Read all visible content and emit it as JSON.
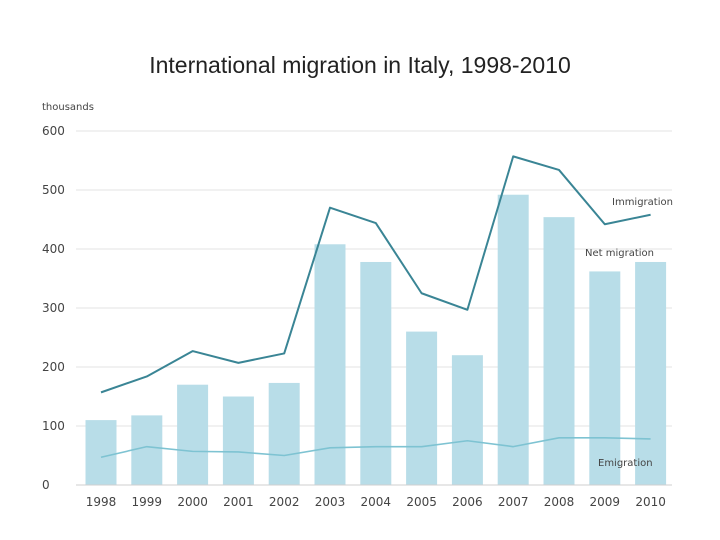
{
  "chart_data": {
    "type": "bar",
    "title": "International migration in Italy, 1998-2010",
    "ylabel": "thousands",
    "xlabel": "",
    "ylim": [
      0,
      600
    ],
    "yticks": [
      0,
      100,
      200,
      300,
      400,
      500,
      600
    ],
    "grid": true,
    "categories": [
      "1998",
      "1999",
      "2000",
      "2001",
      "2002",
      "2003",
      "2004",
      "2005",
      "2006",
      "2007",
      "2008",
      "2009",
      "2010"
    ],
    "series": [
      {
        "name": "Net migration",
        "type": "bar",
        "color": "#b8dde8",
        "values": [
          110,
          118,
          170,
          150,
          173,
          408,
          378,
          260,
          220,
          492,
          454,
          362,
          378
        ]
      },
      {
        "name": "Immigration",
        "type": "line",
        "color": "#3a8595",
        "values": [
          157,
          184,
          227,
          207,
          223,
          470,
          444,
          325,
          297,
          557,
          534,
          442,
          458
        ]
      },
      {
        "name": "Emigration",
        "type": "line",
        "color": "#7ec3d2",
        "values": [
          47,
          65,
          57,
          56,
          50,
          63,
          65,
          65,
          75,
          65,
          80,
          80,
          78
        ]
      }
    ]
  }
}
